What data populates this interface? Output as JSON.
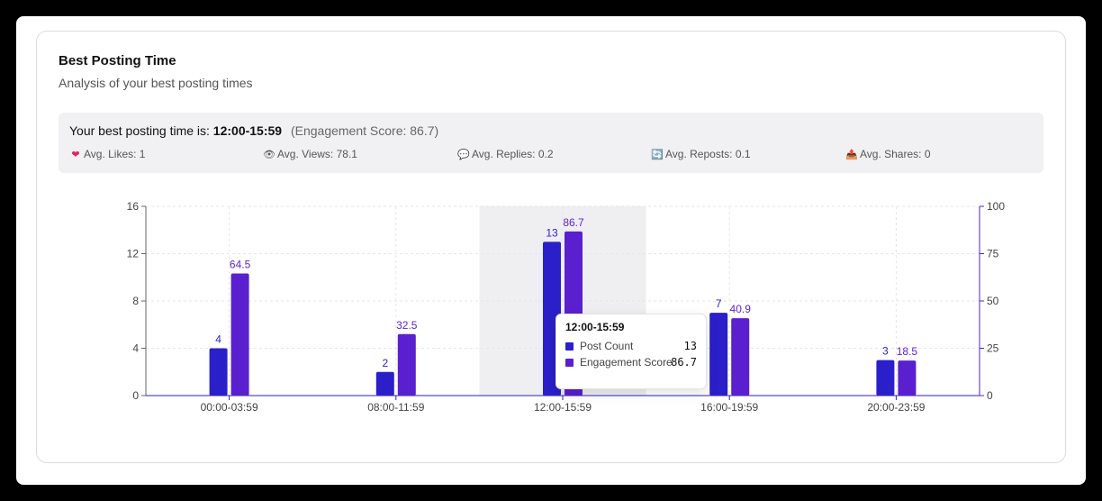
{
  "card": {
    "title": "Best Posting Time",
    "subtitle": "Analysis of your best posting times"
  },
  "summary": {
    "prefix": "Your best posting time is:",
    "best_time": "12:00-15:59",
    "score_text": "(Engagement Score: 86.7)",
    "metrics": [
      {
        "icon": "heart-icon",
        "glyph": "❤",
        "glyph_color": "#e0245e",
        "label": "Avg. Likes: 1"
      },
      {
        "icon": "eye-icon",
        "glyph": "👁",
        "glyph_color": "#6b4f2a",
        "label": "Avg. Views: 78.1"
      },
      {
        "icon": "speech-bubble-icon",
        "glyph": "💬",
        "glyph_color": "#8a8a8a",
        "label": "Avg. Replies: 0.2"
      },
      {
        "icon": "repost-icon",
        "glyph": "🔄",
        "glyph_color": "#2a7bd1",
        "label": "Avg. Reposts: 0.1"
      },
      {
        "icon": "share-icon",
        "glyph": "📤",
        "glyph_color": "#2a7bd1",
        "label": "Avg. Shares: 0"
      }
    ]
  },
  "chart_data": {
    "type": "bar",
    "categories": [
      "00:00-03:59",
      "08:00-11:59",
      "12:00-15:59",
      "16:00-19:59",
      "20:00-23:59"
    ],
    "series": [
      {
        "name": "Post Count",
        "values": [
          4,
          2,
          13,
          7,
          3
        ],
        "color": "#2b1fc9",
        "axis": "left",
        "labels": [
          "4",
          "2",
          "13",
          "7",
          "3"
        ]
      },
      {
        "name": "Engagement Score",
        "values": [
          64.5,
          32.5,
          86.7,
          40.9,
          18.5
        ],
        "color": "#5a1fcf",
        "axis": "right",
        "labels": [
          "64.5",
          "32.5",
          "86.7",
          "40.9",
          "18.5"
        ]
      }
    ],
    "y_left": {
      "min": 0,
      "max": 16,
      "ticks": [
        "0",
        "4",
        "8",
        "12",
        "16"
      ]
    },
    "y_right": {
      "min": 0,
      "max": 100,
      "ticks": [
        "0",
        "25",
        "50",
        "75",
        "100"
      ]
    },
    "highlighted_category": "12:00-15:59",
    "grid": true
  },
  "tooltip": {
    "title": "12:00-15:59",
    "rows": [
      {
        "label": "Post Count",
        "value": "13",
        "color": "#2b1fc9"
      },
      {
        "label": "Engagement Score",
        "value": "86.7",
        "color": "#5a1fcf"
      }
    ]
  }
}
